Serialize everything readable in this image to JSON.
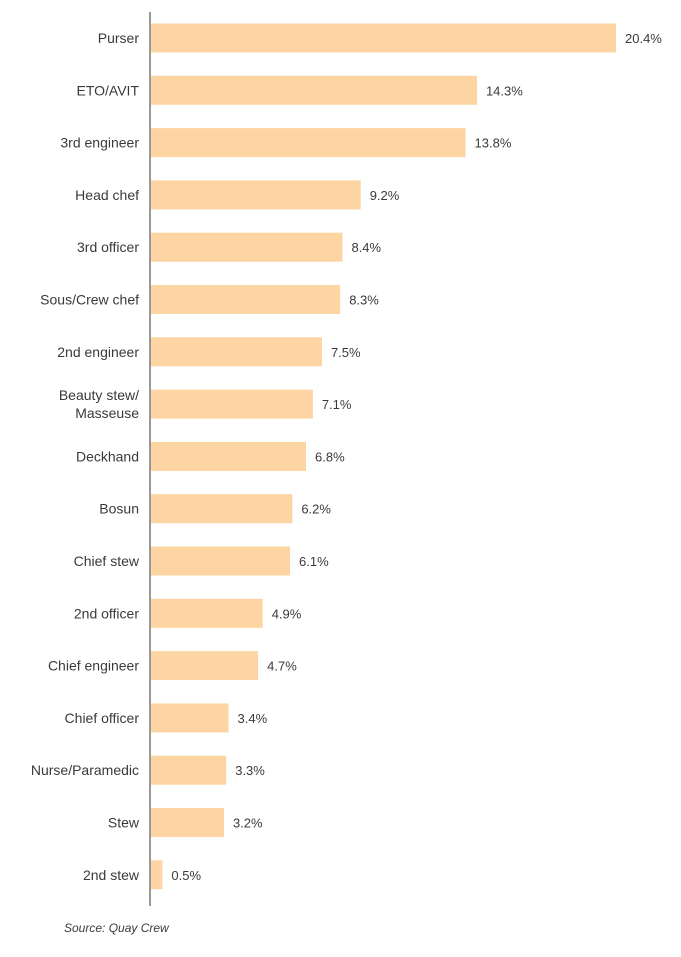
{
  "chart_data": {
    "type": "bar",
    "orientation": "horizontal",
    "categories": [
      "Purser",
      "ETO/AVIT",
      "3rd engineer",
      "Head chef",
      "3rd officer",
      "Sous/Crew chef",
      "2nd engineer",
      "Beauty stew/\nMasseuse",
      "Deckhand",
      "Bosun",
      "Chief stew",
      "2nd officer",
      "Chief engineer",
      "Chief officer",
      "Nurse/Paramedic",
      "Stew",
      "2nd stew"
    ],
    "values": [
      20.4,
      14.3,
      13.8,
      9.2,
      8.4,
      8.3,
      7.5,
      7.1,
      6.8,
      6.2,
      6.1,
      4.9,
      4.7,
      3.4,
      3.3,
      3.2,
      0.5
    ],
    "value_labels": [
      "20.4%",
      "14.3%",
      "13.8%",
      "9.2%",
      "8.4%",
      "8.3%",
      "7.5%",
      "7.1%",
      "6.8%",
      "6.2%",
      "6.1%",
      "4.9%",
      "4.7%",
      "3.4%",
      "3.3%",
      "3.2%",
      "0.5%"
    ],
    "unit": "%",
    "bar_color": "#fdd5a2",
    "axis_color": "#555555",
    "text_color": "#3a3a3a",
    "grid": false,
    "legend": "none"
  },
  "source": "Source: Quay Crew"
}
